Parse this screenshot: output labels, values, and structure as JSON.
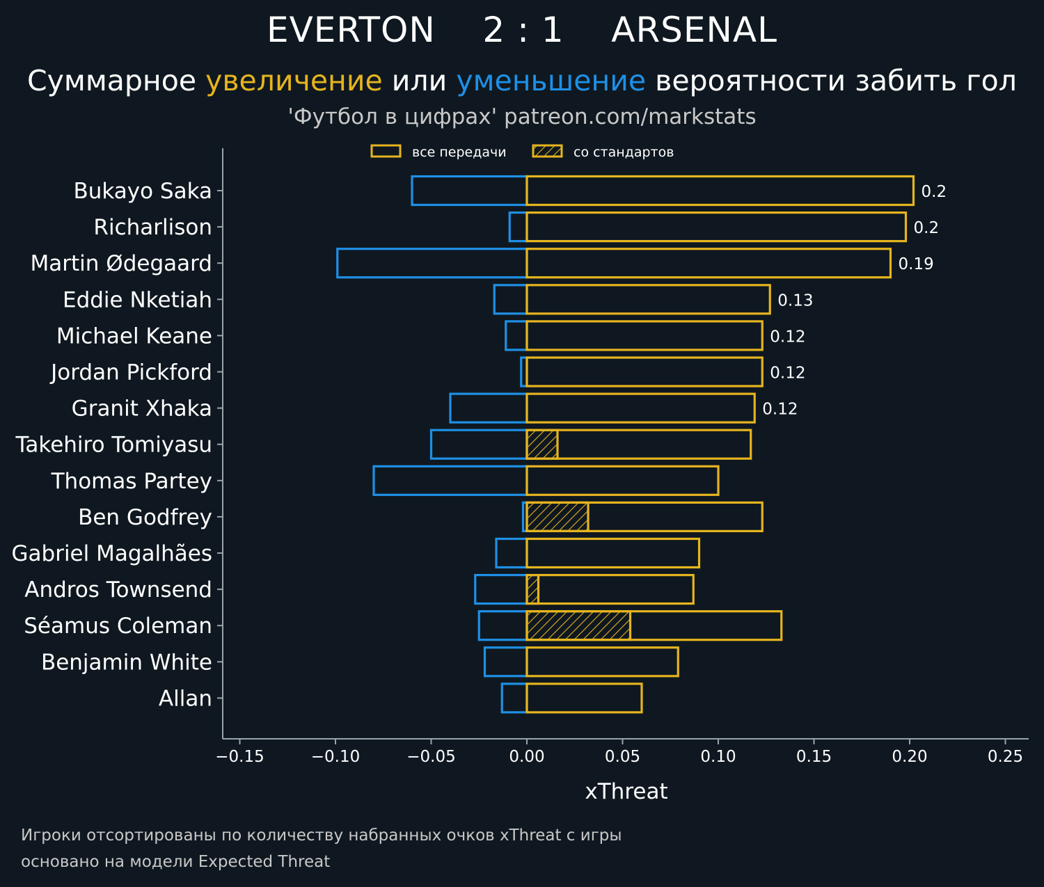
{
  "header": {
    "home_team": "EVERTON",
    "score": "2 : 1",
    "away_team": "ARSENAL"
  },
  "subtitle": {
    "part1": "Суммарное ",
    "increase_word": "увеличение",
    "part2": " или ",
    "decrease_word": "уменьшение",
    "part3": " вероятности забить гол"
  },
  "source": "'Футбол в цифрах' patreon.com/markstats",
  "footnotes": {
    "line1": "Игроки отсортированы по количеству набранных очков xThreat с игры",
    "line2": "основано на модели Expected Threat"
  },
  "colors": {
    "background": "#0f1820",
    "increase": "#e6b41f",
    "decrease": "#1e90e6",
    "axis": "#9aa4ab",
    "text": "#ffffff"
  },
  "chart_data": {
    "type": "bar",
    "orientation": "horizontal",
    "xlabel": "xThreat",
    "xlim": [
      -0.16,
      0.26
    ],
    "xticks": [
      -0.15,
      -0.1,
      -0.05,
      0.0,
      0.05,
      0.1,
      0.15,
      0.2,
      0.25
    ],
    "xtick_labels": [
      "−0.15",
      "−0.10",
      "−0.05",
      "0.00",
      "0.05",
      "0.10",
      "0.15",
      "0.20",
      "0.25"
    ],
    "legend": {
      "position": "top-center",
      "entries": [
        "все передачи",
        "со стандартов"
      ]
    },
    "categories": [
      "Bukayo Saka",
      "Richarlison",
      "Martin Ødegaard",
      "Eddie Nketiah",
      "Michael Keane",
      "Jordan Pickford",
      "Granit Xhaka",
      "Takehiro Tomiyasu",
      "Thomas Partey",
      "Ben Godfrey",
      "Gabriel Magalhães",
      "Andros Townsend",
      "Séamus Coleman",
      "Benjamin White",
      "Allan"
    ],
    "series": [
      {
        "name": "все передачи",
        "positive": [
          0.202,
          0.198,
          0.19,
          0.127,
          0.123,
          0.123,
          0.119,
          0.117,
          0.1,
          0.123,
          0.09,
          0.087,
          0.133,
          0.079,
          0.06
        ],
        "negative": [
          -0.06,
          -0.009,
          -0.099,
          -0.017,
          -0.011,
          -0.003,
          -0.04,
          -0.05,
          -0.08,
          -0.002,
          -0.016,
          -0.027,
          -0.025,
          -0.022,
          -0.013
        ]
      },
      {
        "name": "со стандартов",
        "positive": [
          0,
          0,
          0,
          0,
          0,
          0,
          0,
          0.016,
          0,
          0.032,
          0,
          0.006,
          0.054,
          0,
          0
        ]
      }
    ],
    "data_labels": [
      "0.2",
      "0.2",
      "0.19",
      "0.13",
      "0.12",
      "0.12",
      "0.12",
      "",
      "",
      "",
      "",
      "",
      "",
      "",
      ""
    ]
  }
}
